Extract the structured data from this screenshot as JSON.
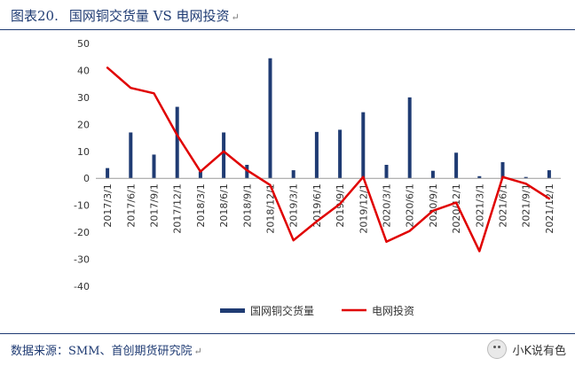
{
  "figure": {
    "label": "图表20.",
    "title": "国网铜交货量 VS 电网投资",
    "source": "数据来源：SMM、首创期货研究院",
    "brand": "小K说有色",
    "brand_icon": "wechat-icon",
    "return_mark": "↵"
  },
  "chart_data": {
    "type": "bar+line",
    "categories": [
      "2017/3/1",
      "2017/6/1",
      "2017/9/1",
      "2017/12/1",
      "2018/3/1",
      "2018/6/1",
      "2018/9/1",
      "2018/12/1",
      "2019/3/1",
      "2019/6/1",
      "2019/9/1",
      "2019/12/1",
      "2020/3/1",
      "2020/6/1",
      "2020/9/1",
      "2020/12/1",
      "2021/3/1",
      "2021/6/1",
      "2021/9/1",
      "2021/12/1"
    ],
    "ylim": [
      -40,
      50
    ],
    "yticks": [
      -40,
      -30,
      -20,
      -10,
      0,
      10,
      20,
      30,
      40,
      50
    ],
    "grid": false,
    "legend": "bottom-center",
    "series": [
      {
        "name": "国网铜交货量",
        "kind": "bar",
        "color": "#1f3b73",
        "values": [
          3.8,
          17,
          8.8,
          26.5,
          2.5,
          17,
          5,
          44.5,
          3,
          17.2,
          18,
          24.5,
          5,
          30,
          2.8,
          9.5,
          0.8,
          6,
          0.5,
          3
        ]
      },
      {
        "name": "电网投资",
        "kind": "line",
        "color": "#e00000",
        "values": [
          41,
          33.5,
          31.5,
          16,
          2.5,
          10,
          3,
          -2.5,
          -23,
          -16,
          -9.5,
          0.5,
          -23.5,
          -19.5,
          -12,
          -9,
          -27,
          0.5,
          -2,
          -7.5
        ]
      }
    ]
  }
}
